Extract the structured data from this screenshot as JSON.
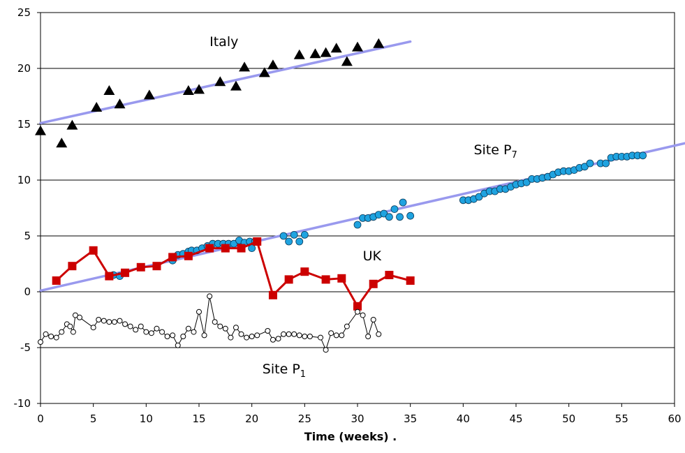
{
  "chart_data": {
    "type": "scatter",
    "title": "",
    "xlabel": "Time (weeks)   .",
    "ylabel": "",
    "xlim": [
      0,
      60
    ],
    "ylim": [
      -10,
      25
    ],
    "x_ticks": [
      0,
      5,
      10,
      15,
      20,
      25,
      30,
      35,
      40,
      45,
      50,
      55,
      60
    ],
    "y_ticks": [
      -10,
      -5,
      0,
      5,
      10,
      15,
      20,
      25
    ],
    "grid": "horizontal",
    "legend": "none",
    "series": [
      {
        "name": "Italy",
        "marker": "triangle",
        "color": "#000000",
        "points": [
          [
            0,
            14.4
          ],
          [
            2,
            13.3
          ],
          [
            3,
            14.9
          ],
          [
            5.3,
            16.5
          ],
          [
            6.5,
            18
          ],
          [
            7.5,
            16.8
          ],
          [
            10.3,
            17.6
          ],
          [
            14,
            18
          ],
          [
            15,
            18.1
          ],
          [
            17,
            18.8
          ],
          [
            18.5,
            18.4
          ],
          [
            19.3,
            20.1
          ],
          [
            21.2,
            19.6
          ],
          [
            22,
            20.3
          ],
          [
            24.5,
            21.2
          ],
          [
            26,
            21.3
          ],
          [
            27,
            21.4
          ],
          [
            28,
            21.8
          ],
          [
            29,
            20.6
          ],
          [
            30,
            21.9
          ],
          [
            32,
            22.2
          ]
        ]
      },
      {
        "name": "Site P",
        "name_sub": "7",
        "marker": "circle",
        "color": "#1fa3e0",
        "points": [
          [
            6.9,
            1.5
          ],
          [
            7.5,
            1.4
          ],
          [
            12.5,
            2.8
          ],
          [
            13,
            3.3
          ],
          [
            13.5,
            3.4
          ],
          [
            14,
            3.6
          ],
          [
            14.3,
            3.7
          ],
          [
            14.8,
            3.7
          ],
          [
            15.3,
            3.9
          ],
          [
            15.8,
            4.1
          ],
          [
            16.3,
            4.3
          ],
          [
            16.8,
            4.3
          ],
          [
            17.3,
            4.3
          ],
          [
            17.8,
            4.3
          ],
          [
            18.3,
            4.3
          ],
          [
            18.8,
            4.6
          ],
          [
            19.3,
            4.4
          ],
          [
            19.8,
            4.5
          ],
          [
            20,
            3.9
          ],
          [
            20.3,
            4.5
          ],
          [
            23,
            5
          ],
          [
            23.5,
            4.5
          ],
          [
            24,
            5.1
          ],
          [
            24.5,
            4.5
          ],
          [
            25,
            5.1
          ],
          [
            30,
            6
          ],
          [
            30.5,
            6.6
          ],
          [
            31,
            6.6
          ],
          [
            31.5,
            6.7
          ],
          [
            32,
            6.9
          ],
          [
            32.5,
            7
          ],
          [
            33,
            6.7
          ],
          [
            33.5,
            7.4
          ],
          [
            34,
            6.7
          ],
          [
            34.3,
            8
          ],
          [
            35,
            6.8
          ],
          [
            40,
            8.2
          ],
          [
            40.5,
            8.2
          ],
          [
            41,
            8.3
          ],
          [
            41.5,
            8.5
          ],
          [
            42,
            8.8
          ],
          [
            42.5,
            9
          ],
          [
            43,
            9
          ],
          [
            43.5,
            9.2
          ],
          [
            44,
            9.2
          ],
          [
            44.5,
            9.4
          ],
          [
            45,
            9.6
          ],
          [
            45.5,
            9.7
          ],
          [
            46,
            9.8
          ],
          [
            46.5,
            10.1
          ],
          [
            47,
            10.1
          ],
          [
            47.5,
            10.2
          ],
          [
            48,
            10.3
          ],
          [
            48.5,
            10.5
          ],
          [
            49,
            10.7
          ],
          [
            49.5,
            10.8
          ],
          [
            50,
            10.8
          ],
          [
            50.5,
            10.9
          ],
          [
            51,
            11.1
          ],
          [
            51.5,
            11.2
          ],
          [
            52,
            11.5
          ],
          [
            53,
            11.5
          ],
          [
            53.5,
            11.5
          ],
          [
            54,
            12
          ],
          [
            54.5,
            12.1
          ],
          [
            55,
            12.1
          ],
          [
            55.5,
            12.1
          ],
          [
            56,
            12.2
          ],
          [
            56.5,
            12.2
          ],
          [
            57,
            12.2
          ]
        ]
      },
      {
        "name": "UK",
        "marker": "square",
        "color": "#cc0000",
        "connected": true,
        "points": [
          [
            1.5,
            1
          ],
          [
            3,
            2.3
          ],
          [
            5,
            3.7
          ],
          [
            6.5,
            1.4
          ],
          [
            8,
            1.7
          ],
          [
            9.5,
            2.2
          ],
          [
            11,
            2.3
          ],
          [
            12.5,
            3.1
          ],
          [
            14,
            3.2
          ],
          [
            16,
            3.9
          ],
          [
            17.5,
            3.9
          ],
          [
            19,
            3.9
          ],
          [
            20.5,
            4.5
          ],
          [
            22,
            -0.3
          ],
          [
            23.5,
            1.1
          ],
          [
            25,
            1.8
          ],
          [
            27,
            1.1
          ],
          [
            28.5,
            1.2
          ],
          [
            30,
            -1.3
          ],
          [
            31.5,
            0.7
          ],
          [
            33,
            1.5
          ],
          [
            35,
            1
          ]
        ]
      },
      {
        "name": "Site P",
        "name_sub": "1",
        "marker": "open-circle",
        "color": "#000000",
        "connected": true,
        "points": [
          [
            0,
            -4.5
          ],
          [
            0.5,
            -3.8
          ],
          [
            1,
            -4
          ],
          [
            1.5,
            -4.1
          ],
          [
            2,
            -3.6
          ],
          [
            2.5,
            -2.9
          ],
          [
            2.8,
            -3.1
          ],
          [
            3.1,
            -3.6
          ],
          [
            3.3,
            -2.1
          ],
          [
            3.7,
            -2.3
          ],
          [
            5,
            -3.2
          ],
          [
            5.5,
            -2.5
          ],
          [
            6,
            -2.6
          ],
          [
            6.5,
            -2.7
          ],
          [
            7,
            -2.7
          ],
          [
            7.5,
            -2.6
          ],
          [
            8,
            -2.9
          ],
          [
            8.5,
            -3.1
          ],
          [
            9,
            -3.4
          ],
          [
            9.5,
            -3.1
          ],
          [
            10,
            -3.6
          ],
          [
            10.5,
            -3.7
          ],
          [
            11,
            -3.3
          ],
          [
            11.5,
            -3.6
          ],
          [
            12,
            -4
          ],
          [
            12.5,
            -3.9
          ],
          [
            13,
            -4.8
          ],
          [
            13.5,
            -4
          ],
          [
            14,
            -3.3
          ],
          [
            14.5,
            -3.6
          ],
          [
            15,
            -1.8
          ],
          [
            15.5,
            -3.9
          ],
          [
            16,
            -0.4
          ],
          [
            16.5,
            -2.7
          ],
          [
            17,
            -3.1
          ],
          [
            17.5,
            -3.3
          ],
          [
            18,
            -4.1
          ],
          [
            18.5,
            -3.2
          ],
          [
            19,
            -3.8
          ],
          [
            19.5,
            -4.1
          ],
          [
            20,
            -4
          ],
          [
            20.5,
            -3.9
          ],
          [
            21.5,
            -3.5
          ],
          [
            22,
            -4.3
          ],
          [
            22.5,
            -4.2
          ],
          [
            23,
            -3.8
          ],
          [
            23.5,
            -3.8
          ],
          [
            24,
            -3.8
          ],
          [
            24.5,
            -3.9
          ],
          [
            25,
            -4
          ],
          [
            25.5,
            -4
          ],
          [
            26.5,
            -4.1
          ],
          [
            27,
            -5.2
          ],
          [
            27.5,
            -3.7
          ],
          [
            28,
            -3.9
          ],
          [
            28.5,
            -3.9
          ],
          [
            29,
            -3.1
          ],
          [
            30,
            -1.8
          ],
          [
            30.5,
            -2.1
          ],
          [
            31,
            -4
          ],
          [
            31.5,
            -2.5
          ],
          [
            32,
            -3.8
          ]
        ]
      }
    ],
    "trendlines": [
      {
        "series": "Italy",
        "color": "#9999ee",
        "from": [
          0,
          15.1
        ],
        "to": [
          35,
          22.4
        ]
      },
      {
        "series": "Site P7",
        "color": "#9999ee",
        "from": [
          0,
          0.1
        ],
        "to": [
          61,
          13.3
        ]
      }
    ],
    "annotations": [
      {
        "text": "Italy",
        "x": 16,
        "y": 22
      },
      {
        "text": "Site P",
        "sub": "7",
        "x": 41,
        "y": 12.3
      },
      {
        "text": "UK",
        "x": 30.5,
        "y": 2.8
      },
      {
        "text": "Site P",
        "sub": "1",
        "x": 21,
        "y": -7.3
      }
    ]
  }
}
